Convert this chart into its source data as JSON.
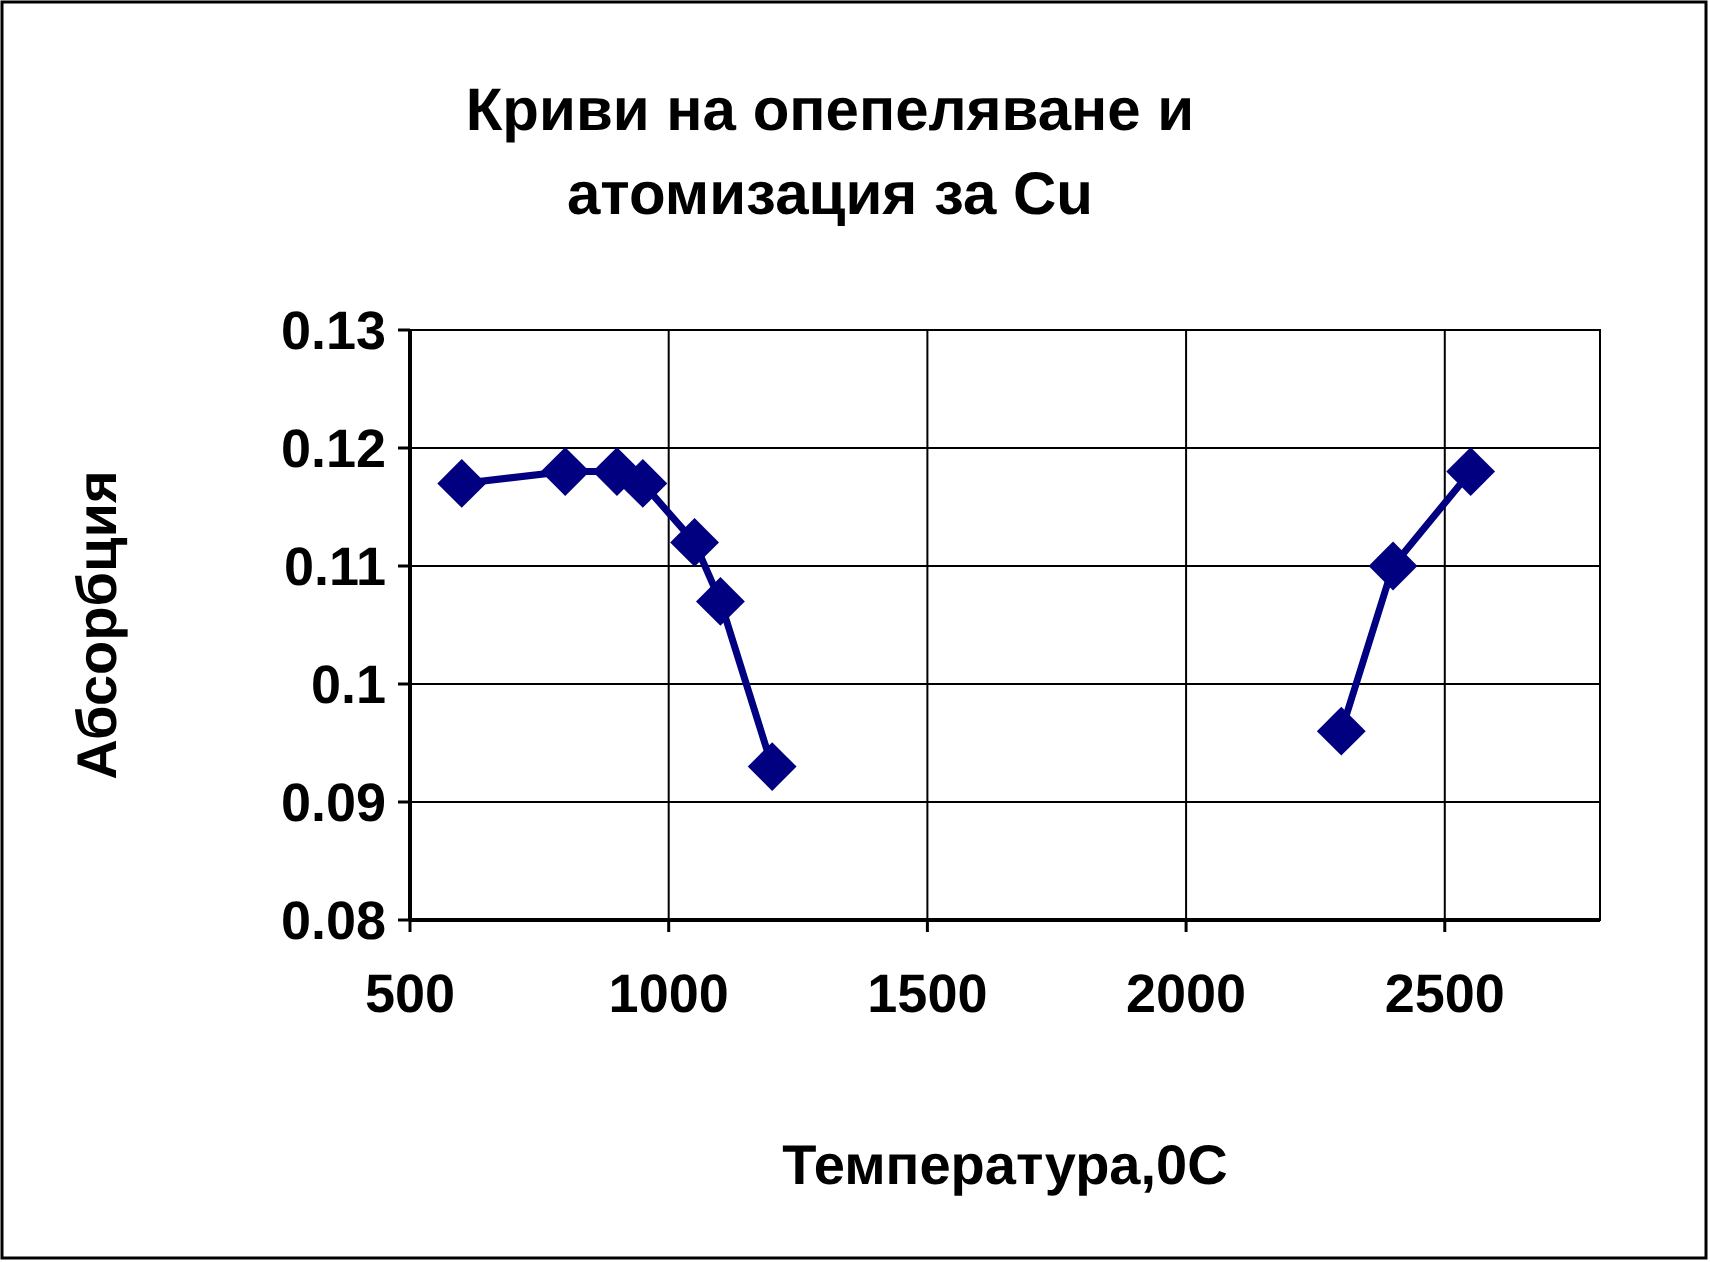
{
  "chart_data": {
    "type": "line",
    "title": "Криви на опепеляване и атомизация за Cu",
    "xlabel": "Температура,0C",
    "ylabel": "Абсорбция",
    "series": [
      {
        "color": "#000080",
        "x": [
          600,
          800,
          900,
          950,
          1050,
          1100,
          1200
        ],
        "values": [
          0.117,
          0.118,
          0.118,
          0.117,
          0.112,
          0.107,
          0.093
        ]
      },
      {
        "color": "#000080",
        "x": [
          2300,
          2400,
          2550
        ],
        "values": [
          0.096,
          0.11,
          0.118
        ]
      }
    ],
    "xlim": [
      500,
      2800
    ],
    "xticks": [
      500,
      1000,
      1500,
      2000,
      2500
    ],
    "ylim": [
      0.08,
      0.13
    ],
    "yticks": [
      {
        "value": 0.08,
        "label": "0.08"
      },
      {
        "value": 0.09,
        "label": "0.09"
      },
      {
        "value": 0.1,
        "label": "0.1"
      },
      {
        "value": 0.11,
        "label": "0.11"
      },
      {
        "value": 0.12,
        "label": "0.12"
      },
      {
        "value": 0.13,
        "label": "0.13"
      }
    ],
    "grid": true,
    "marker": "diamond",
    "line_style": "solid"
  }
}
